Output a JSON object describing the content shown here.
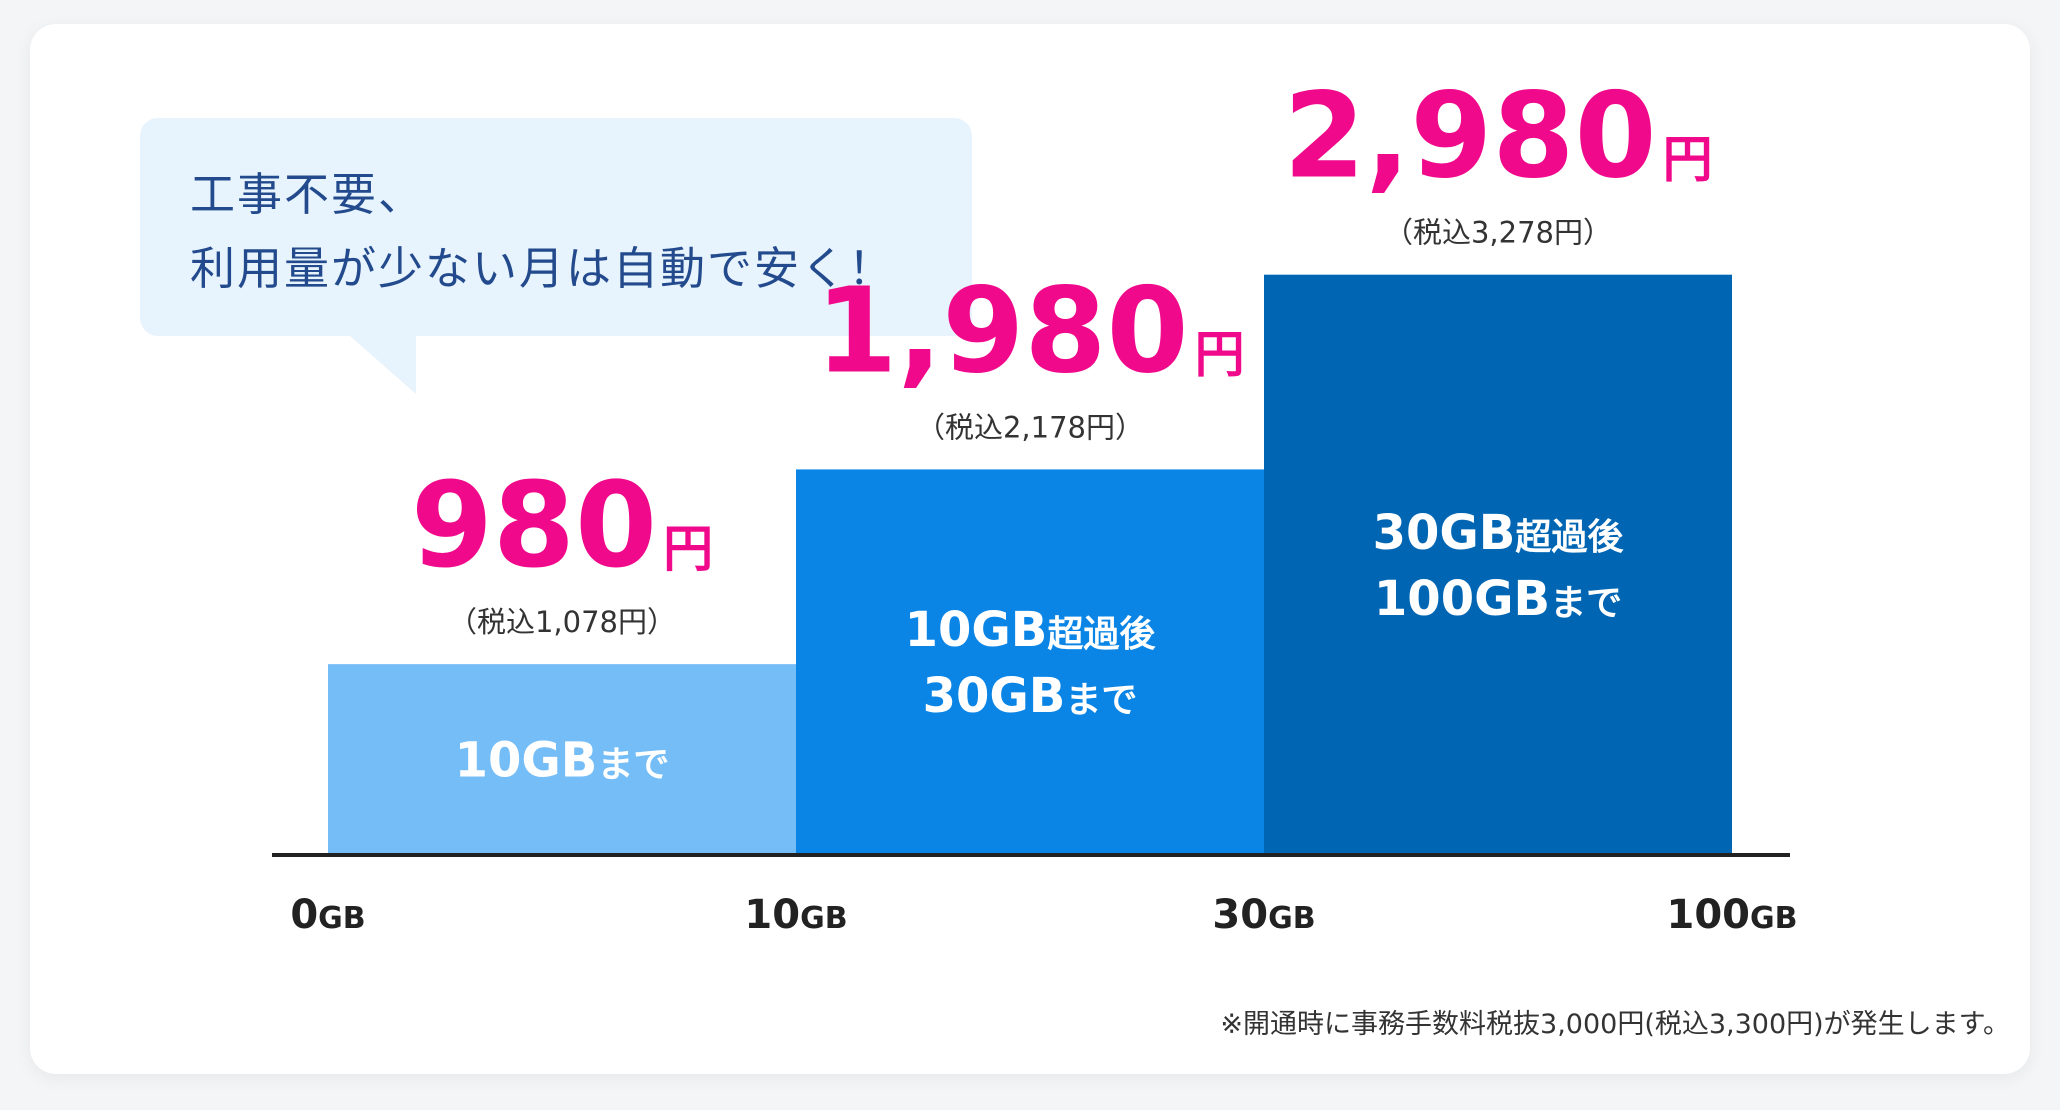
{
  "bubble": {
    "line1": "工事不要、",
    "line2": "利用量が少ない月は自動で安く！"
  },
  "footnote": "※開通時に事務手数料税抜3,000円(税込3,300円)が発生します。",
  "colors": {
    "price": "#f0098b",
    "tier1": "#74bdf7",
    "tier2": "#0a85e6",
    "tier3": "#0066b3",
    "axis_line": "#222222",
    "tax_text": "#333333",
    "bar_text": "#ffffff",
    "bubble_bg": "#e7f3fd",
    "bubble_text": "#224a8c"
  },
  "chart_data": {
    "type": "bar",
    "x_unit": "GB",
    "x_ticks": [
      "0",
      "10",
      "30",
      "100"
    ],
    "series": [
      {
        "from": "0",
        "to": "10",
        "label_lines": [
          [
            {
              "t": "10GB",
              "big": true
            },
            {
              "t": "まで",
              "big": false
            }
          ]
        ],
        "price": "980",
        "price_unit": "円",
        "tax_label": "（税込1,078円）",
        "value": 980
      },
      {
        "from": "10",
        "to": "30",
        "label_lines": [
          [
            {
              "t": "10GB",
              "big": true
            },
            {
              "t": "超過後",
              "big": false
            }
          ],
          [
            {
              "t": "30GB",
              "big": true
            },
            {
              "t": "まで",
              "big": false
            }
          ]
        ],
        "price": "1,980",
        "price_unit": "円",
        "tax_label": "（税込2,178円）",
        "value": 1980
      },
      {
        "from": "30",
        "to": "100",
        "label_lines": [
          [
            {
              "t": "30GB",
              "big": true
            },
            {
              "t": "超過後",
              "big": false
            }
          ],
          [
            {
              "t": "100GB",
              "big": true
            },
            {
              "t": "まで",
              "big": false
            }
          ]
        ],
        "price": "2,980",
        "price_unit": "円",
        "tax_label": "（税込3,278円）",
        "value": 2980
      }
    ],
    "ylim": [
      0,
      3800
    ]
  }
}
